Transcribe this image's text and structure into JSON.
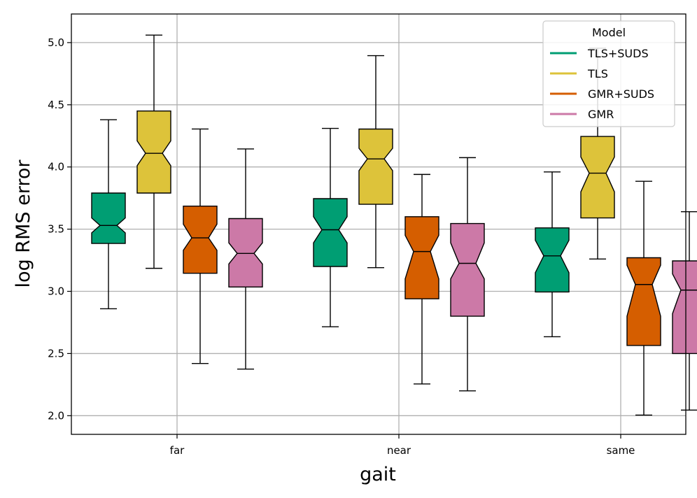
{
  "chart_data": {
    "type": "boxplot",
    "notched": true,
    "xlabel": "gait",
    "ylabel": "log RMS error",
    "ylim": [
      1.85,
      5.23
    ],
    "yticks": [
      "2.0",
      "2.5",
      "3.0",
      "3.5",
      "4.0",
      "4.5",
      "5.0"
    ],
    "grid": true,
    "categories": [
      "far",
      "near",
      "same"
    ],
    "legend": {
      "title": "Model",
      "placement": "top-right"
    },
    "series": [
      {
        "name": "TLS+SUDS",
        "color": "#009E73",
        "boxes": [
          {
            "whislo": 2.86,
            "q1": 3.385,
            "median": 3.53,
            "q3": 3.79,
            "whishi": 4.38,
            "notch_lo": 3.47,
            "notch_hi": 3.59
          },
          {
            "whislo": 2.715,
            "q1": 3.2,
            "median": 3.495,
            "q3": 3.745,
            "whishi": 4.31,
            "notch_lo": 3.39,
            "notch_hi": 3.6
          },
          {
            "whislo": 2.635,
            "q1": 2.995,
            "median": 3.285,
            "q3": 3.51,
            "whishi": 3.96,
            "notch_lo": 3.15,
            "notch_hi": 3.41
          }
        ]
      },
      {
        "name": "TLS",
        "color": "#DDC33A",
        "boxes": [
          {
            "whislo": 3.185,
            "q1": 3.79,
            "median": 4.11,
            "q3": 4.45,
            "whishi": 5.06,
            "notch_lo": 4.01,
            "notch_hi": 4.21
          },
          {
            "whislo": 3.19,
            "q1": 3.7,
            "median": 4.065,
            "q3": 4.305,
            "whishi": 4.895,
            "notch_lo": 3.97,
            "notch_hi": 4.15
          },
          {
            "whislo": 3.26,
            "q1": 3.59,
            "median": 3.95,
            "q3": 4.245,
            "whishi": 4.955,
            "notch_lo": 3.8,
            "notch_hi": 4.08
          }
        ]
      },
      {
        "name": "GMR+SUDS",
        "color": "#D55E00",
        "boxes": [
          {
            "whislo": 2.42,
            "q1": 3.145,
            "median": 3.43,
            "q3": 3.685,
            "whishi": 4.305,
            "notch_lo": 3.33,
            "notch_hi": 3.54
          },
          {
            "whislo": 2.255,
            "q1": 2.94,
            "median": 3.32,
            "q3": 3.6,
            "whishi": 3.94,
            "notch_lo": 3.1,
            "notch_hi": 3.45
          },
          {
            "whislo": 2.005,
            "q1": 2.565,
            "median": 3.055,
            "q3": 3.27,
            "whishi": 3.885,
            "notch_lo": 2.8,
            "notch_hi": 3.21
          }
        ]
      },
      {
        "name": "GMR",
        "color": "#CC79A7",
        "boxes": [
          {
            "whislo": 2.375,
            "q1": 3.035,
            "median": 3.305,
            "q3": 3.585,
            "whishi": 4.145,
            "notch_lo": 3.22,
            "notch_hi": 3.39
          },
          {
            "whislo": 2.2,
            "q1": 2.8,
            "median": 3.225,
            "q3": 3.545,
            "whishi": 4.075,
            "notch_lo": 3.1,
            "notch_hi": 3.39
          },
          {
            "whislo": 2.045,
            "q1": 2.5,
            "median": 3.01,
            "q3": 3.245,
            "whishi": 3.64,
            "notch_lo": 2.82,
            "notch_hi": 3.14
          }
        ]
      }
    ]
  }
}
